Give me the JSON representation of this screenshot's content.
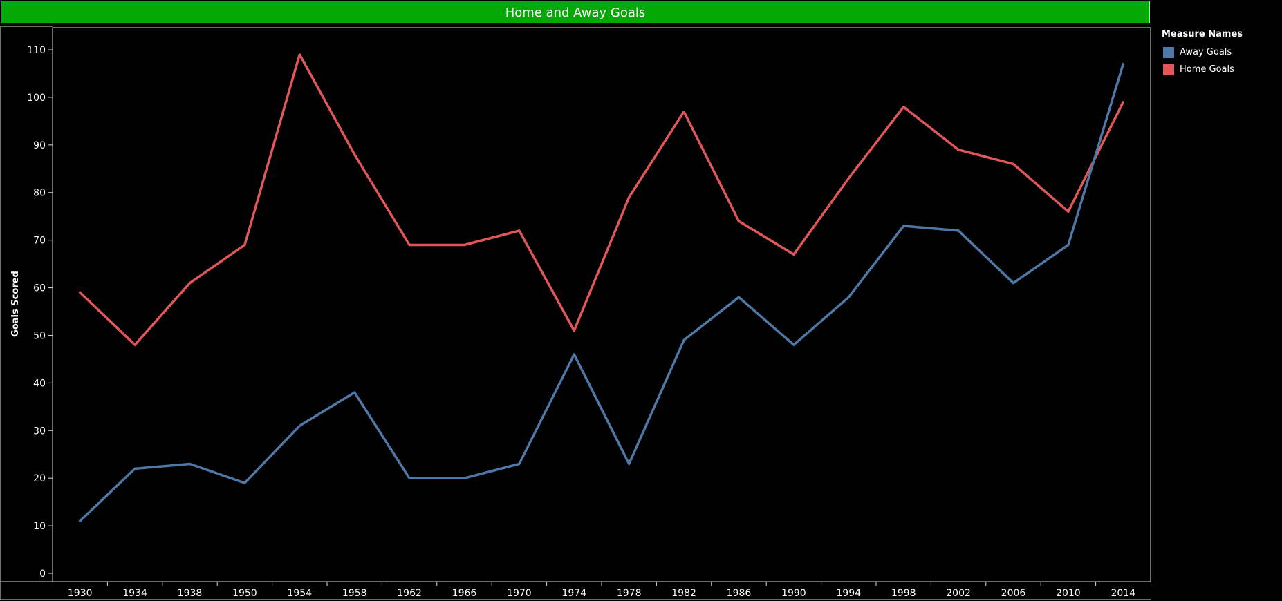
{
  "chart_data": {
    "type": "line",
    "title": "Home and Away Goals",
    "ylabel": "Goals Scored",
    "xlabel": "",
    "ylim": [
      0,
      110
    ],
    "yticks": [
      0,
      10,
      20,
      30,
      40,
      50,
      60,
      70,
      80,
      90,
      100,
      110
    ],
    "categories": [
      "1930",
      "1934",
      "1938",
      "1950",
      "1954",
      "1958",
      "1962",
      "1966",
      "1970",
      "1974",
      "1978",
      "1982",
      "1986",
      "1990",
      "1994",
      "1998",
      "2002",
      "2006",
      "2010",
      "2014"
    ],
    "series": [
      {
        "name": "Home Goals",
        "color": "#e15759",
        "values": [
          59,
          48,
          61,
          69,
          109,
          88,
          69,
          69,
          72,
          51,
          79,
          97,
          74,
          67,
          83,
          98,
          89,
          86,
          76,
          99
        ]
      },
      {
        "name": "Away Goals",
        "color": "#4e79a7",
        "values": [
          11,
          22,
          23,
          19,
          31,
          38,
          20,
          20,
          23,
          46,
          23,
          49,
          58,
          48,
          58,
          73,
          72,
          61,
          69,
          107
        ]
      }
    ],
    "grid": false,
    "legend": {
      "title": "Measure Names",
      "position": "right",
      "items": [
        {
          "name": "Away Goals",
          "color": "#4e79a7"
        },
        {
          "name": "Home Goals",
          "color": "#e15759"
        }
      ]
    }
  }
}
